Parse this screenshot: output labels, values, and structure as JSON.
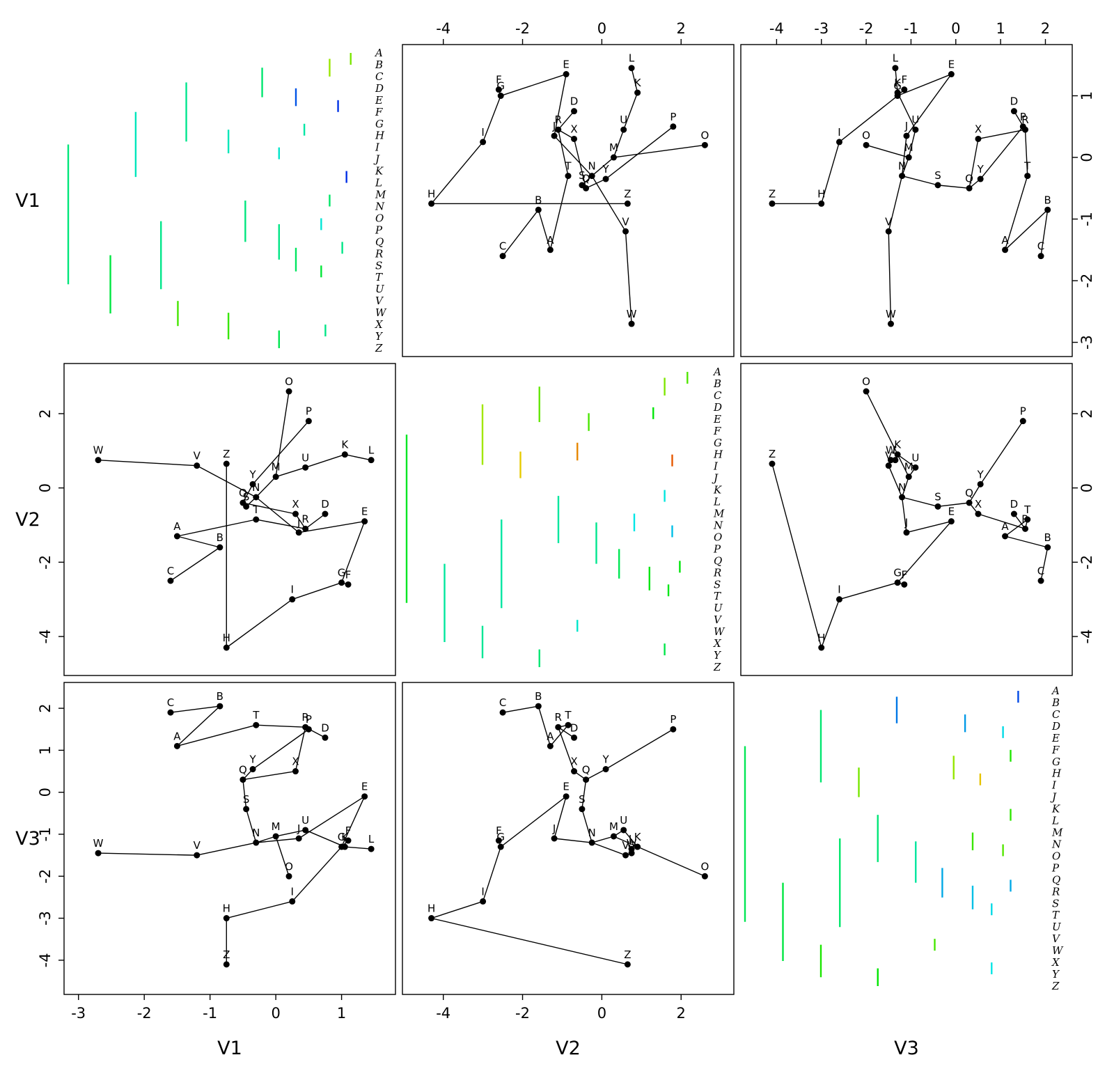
{
  "figure": {
    "background": "#ffffff"
  },
  "variables": [
    "V1",
    "V2",
    "V3"
  ],
  "margin_labels": {
    "left_rows": [
      "V1",
      "V2",
      "V3"
    ],
    "bottom_cols": [
      "V1",
      "V2",
      "V3"
    ]
  },
  "axis": {
    "V1": {
      "range": [
        -3.05,
        1.65
      ],
      "ticks": [
        -3,
        -2,
        -1,
        0,
        1
      ]
    },
    "V2": {
      "range": [
        -4.75,
        3.05
      ],
      "ticks": [
        -4,
        -2,
        0,
        2
      ]
    },
    "V3": {
      "range": [
        -4.55,
        2.35
      ],
      "ticks": [
        -4,
        -3,
        -2,
        -1,
        0,
        1,
        2
      ]
    }
  },
  "chart_data": {
    "type": "scatter",
    "layout": "3x3 pairs matrix: colored dendrograms on the diagonal, tree-connected scatterplots off-diagonal",
    "title": "",
    "variables": [
      "V1",
      "V2",
      "V3"
    ],
    "legend": "none",
    "grid": false,
    "colormap": "rainbow: low value = red (hue 0), high value = blue (hue 240), applied to dendrogram branches",
    "points": [
      {
        "label": "A",
        "V1": -1.5,
        "V2": -1.3,
        "V3": 1.1
      },
      {
        "label": "B",
        "V1": -0.85,
        "V2": -1.6,
        "V3": 2.05
      },
      {
        "label": "C",
        "V1": -1.6,
        "V2": -2.5,
        "V3": 1.9
      },
      {
        "label": "D",
        "V1": 0.75,
        "V2": -0.7,
        "V3": 1.3
      },
      {
        "label": "E",
        "V1": 1.35,
        "V2": -0.9,
        "V3": -0.1
      },
      {
        "label": "F",
        "V1": 1.1,
        "V2": -2.6,
        "V3": -1.15
      },
      {
        "label": "G",
        "V1": 1.0,
        "V2": -2.55,
        "V3": -1.3
      },
      {
        "label": "H",
        "V1": -0.75,
        "V2": -4.3,
        "V3": -3.0
      },
      {
        "label": "I",
        "V1": 0.25,
        "V2": -3.0,
        "V3": -2.6
      },
      {
        "label": "J",
        "V1": 0.35,
        "V2": -1.2,
        "V3": -1.1
      },
      {
        "label": "K",
        "V1": 1.05,
        "V2": 0.9,
        "V3": -1.3
      },
      {
        "label": "L",
        "V1": 1.45,
        "V2": 0.75,
        "V3": -1.35
      },
      {
        "label": "M",
        "V1": 0.0,
        "V2": 0.3,
        "V3": -1.05
      },
      {
        "label": "N",
        "V1": -0.3,
        "V2": -0.25,
        "V3": -1.2
      },
      {
        "label": "O",
        "V1": 0.2,
        "V2": 2.6,
        "V3": -2.0
      },
      {
        "label": "P",
        "V1": 0.5,
        "V2": 1.8,
        "V3": 1.5
      },
      {
        "label": "Q",
        "V1": -0.5,
        "V2": -0.4,
        "V3": 0.3
      },
      {
        "label": "R",
        "V1": 0.45,
        "V2": -1.1,
        "V3": 1.55
      },
      {
        "label": "S",
        "V1": -0.45,
        "V2": -0.5,
        "V3": -0.4
      },
      {
        "label": "T",
        "V1": -0.3,
        "V2": -0.85,
        "V3": 1.6
      },
      {
        "label": "U",
        "V1": 0.45,
        "V2": 0.55,
        "V3": -0.9
      },
      {
        "label": "V",
        "V1": -1.2,
        "V2": 0.6,
        "V3": -1.5
      },
      {
        "label": "W",
        "V1": -2.7,
        "V2": 0.75,
        "V3": -1.45
      },
      {
        "label": "X",
        "V1": 0.3,
        "V2": -0.7,
        "V3": 0.5
      },
      {
        "label": "Y",
        "V1": -0.35,
        "V2": 0.1,
        "V3": 0.55
      },
      {
        "label": "Z",
        "V1": -0.75,
        "V2": 0.65,
        "V3": -4.1
      }
    ],
    "edges": [
      [
        "A",
        "B"
      ],
      [
        "B",
        "C"
      ],
      [
        "A",
        "T"
      ],
      [
        "T",
        "R"
      ],
      [
        "R",
        "D"
      ],
      [
        "R",
        "X"
      ],
      [
        "X",
        "Q"
      ],
      [
        "Q",
        "Y"
      ],
      [
        "Q",
        "S"
      ],
      [
        "S",
        "N"
      ],
      [
        "N",
        "M"
      ],
      [
        "M",
        "U"
      ],
      [
        "U",
        "K"
      ],
      [
        "K",
        "L"
      ],
      [
        "N",
        "J"
      ],
      [
        "J",
        "E"
      ],
      [
        "E",
        "G"
      ],
      [
        "F",
        "G"
      ],
      [
        "G",
        "I"
      ],
      [
        "I",
        "H"
      ],
      [
        "H",
        "Z"
      ],
      [
        "N",
        "V"
      ],
      [
        "V",
        "W"
      ],
      [
        "O",
        "M"
      ],
      [
        "P",
        "Y"
      ]
    ]
  },
  "dendrograms": {
    "V1": {
      "h": 7.2,
      "c": [
        {
          "h": 5.6,
          "c": [
            {
              "h": 4.4,
              "c": [
                {
                  "h": 2.6,
                  "c": [
                    {
                      "h": 1.0,
                      "c": [
                        {
                          "h": 0.5,
                          "c": [
                            "A",
                            "B"
                          ]
                        },
                        "C"
                      ]
                    },
                    {
                      "h": 1.8,
                      "c": [
                        "D",
                        {
                          "h": 0.8,
                          "c": [
                            "E",
                            "F"
                          ]
                        }
                      ]
                    }
                  ]
                },
                {
                  "h": 3.4,
                  "c": [
                    {
                      "h": 1.6,
                      "c": [
                        "G",
                        "H"
                      ]
                    },
                    {
                      "h": 2.2,
                      "c": [
                        "I",
                        "J"
                      ]
                    }
                  ]
                }
              ]
            },
            {
              "h": 0.6,
              "c": [
                "K",
                "L"
              ]
            }
          ]
        },
        {
          "h": 6.2,
          "c": [
            {
              "h": 5.0,
              "c": [
                {
                  "h": 3.0,
                  "c": [
                    {
                      "h": 1.0,
                      "c": [
                        "M",
                        "N"
                      ]
                    },
                    {
                      "h": 2.2,
                      "c": [
                        {
                          "h": 1.2,
                          "c": [
                            "O",
                            "P"
                          ]
                        },
                        {
                          "h": 1.8,
                          "c": [
                            {
                              "h": 0.7,
                              "c": [
                                "Q",
                                "R"
                              ]
                            },
                            {
                              "h": 1.2,
                              "c": [
                                "S",
                                "T"
                              ]
                            }
                          ]
                        }
                      ]
                    }
                  ]
                },
                "U"
              ]
            },
            {
              "h": 4.6,
              "c": [
                "V",
                {
                  "h": 3.4,
                  "c": [
                    "W",
                    {
                      "h": 2.2,
                      "c": [
                        {
                          "h": 1.1,
                          "c": [
                            "X",
                            "Y"
                          ]
                        },
                        "Z"
                      ]
                    }
                  ]
                }
              ]
            }
          ]
        }
      ]
    },
    "V2": {
      "h": 8.0,
      "c": [
        {
          "h": 6.0,
          "c": [
            {
              "h": 4.5,
              "c": [
                {
                  "h": 1.2,
                  "c": [
                    {
                      "h": 0.6,
                      "c": [
                        "A",
                        "B"
                      ]
                    },
                    "C"
                  ]
                },
                {
                  "h": 3.2,
                  "c": [
                    {
                      "h": 1.5,
                      "c": [
                        "D",
                        "E"
                      ]
                    },
                    "F"
                  ]
                }
              ]
            },
            {
              "h": 5.0,
              "c": [
                {
                  "h": 3.5,
                  "c": [
                    "G",
                    {
                      "h": 1.0,
                      "c": [
                        "H",
                        "I"
                      ]
                    }
                  ]
                },
                "J"
              ]
            }
          ]
        },
        {
          "h": 7.0,
          "c": [
            {
              "h": 5.5,
              "c": [
                {
                  "h": 4.0,
                  "c": [
                    {
                      "h": 1.2,
                      "c": [
                        "K",
                        "L"
                      ]
                    },
                    {
                      "h": 3.0,
                      "c": [
                        {
                          "h": 2.0,
                          "c": [
                            "M",
                            {
                              "h": 1.0,
                              "c": [
                                "N",
                                "O"
                              ]
                            }
                          ]
                        },
                        {
                          "h": 2.4,
                          "c": [
                            "P",
                            {
                              "h": 1.6,
                              "c": [
                                {
                                  "h": 0.8,
                                  "c": [
                                    "Q",
                                    "R"
                                  ]
                                },
                                {
                                  "h": 1.1,
                                  "c": [
                                    "S",
                                    "T"
                                  ]
                                }
                              ]
                            }
                          ]
                        }
                      ]
                    }
                  ]
                },
                "U"
              ]
            },
            {
              "h": 6.0,
              "c": [
                {
                  "h": 3.5,
                  "c": [
                    "V",
                    "W"
                  ]
                },
                {
                  "h": 4.5,
                  "c": [
                    {
                      "h": 1.2,
                      "c": [
                        "X",
                        "Y"
                      ]
                    },
                    "Z"
                  ]
                }
              ]
            }
          ]
        }
      ]
    },
    "V3": {
      "h": 8.0,
      "c": [
        {
          "h": 6.0,
          "c": [
            {
              "h": 4.0,
              "c": [
                {
                  "h": 0.8,
                  "c": [
                    "A",
                    "B"
                  ]
                },
                {
                  "h": 2.2,
                  "c": [
                    "C",
                    {
                      "h": 1.2,
                      "c": [
                        "D",
                        "E"
                      ]
                    }
                  ]
                }
              ]
            },
            {
              "h": 5.0,
              "c": [
                {
                  "h": 2.5,
                  "c": [
                    {
                      "h": 1.0,
                      "c": [
                        "F",
                        "G"
                      ]
                    },
                    {
                      "h": 1.8,
                      "c": [
                        "H",
                        "I"
                      ]
                    }
                  ]
                },
                "J"
              ]
            }
          ]
        },
        {
          "h": 7.0,
          "c": [
            {
              "h": 5.5,
              "c": [
                {
                  "h": 4.5,
                  "c": [
                    {
                      "h": 1.0,
                      "c": [
                        "K",
                        "L"
                      ]
                    },
                    {
                      "h": 3.5,
                      "c": [
                        {
                          "h": 2.0,
                          "c": [
                            "M",
                            {
                              "h": 1.2,
                              "c": [
                                "N",
                                "O"
                              ]
                            }
                          ]
                        },
                        {
                          "h": 2.8,
                          "c": [
                            "P",
                            {
                              "h": 2.0,
                              "c": [
                                {
                                  "h": 1.0,
                                  "c": [
                                    "Q",
                                    "R"
                                  ]
                                },
                                {
                                  "h": 1.5,
                                  "c": [
                                    "S",
                                    "T"
                                  ]
                                }
                              ]
                            }
                          ]
                        }
                      ]
                    }
                  ]
                },
                "U"
              ]
            },
            {
              "h": 6.0,
              "c": [
                {
                  "h": 3.0,
                  "c": [
                    "V",
                    "W"
                  ]
                },
                {
                  "h": 4.5,
                  "c": [
                    {
                      "h": 1.5,
                      "c": [
                        "X",
                        "Y"
                      ]
                    },
                    "Z"
                  ]
                }
              ]
            }
          ]
        }
      ]
    }
  }
}
